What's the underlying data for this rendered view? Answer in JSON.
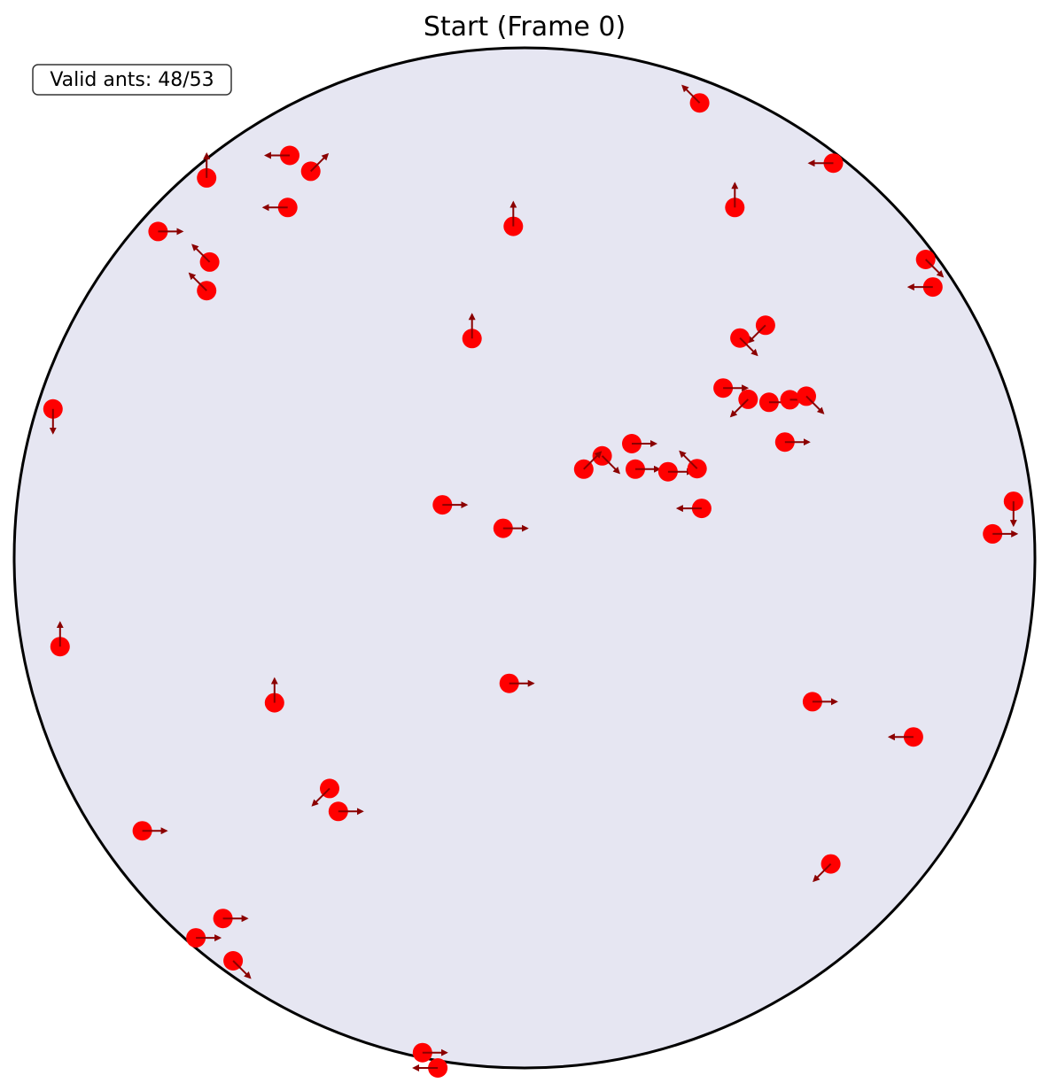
{
  "chart_data": {
    "type": "scatter",
    "title": "Start (Frame 0)",
    "annotation": "Valid ants: 48/53",
    "arena": {
      "shape": "circle",
      "fill": "#e6e6f2",
      "stroke": "#000000"
    },
    "colors": {
      "ant": "#ff0000",
      "arrow": "#8b0000",
      "arena": "#e6e6f2"
    },
    "axis_range": {
      "x": [
        -1,
        1
      ],
      "y": [
        -1,
        1
      ]
    },
    "grid": false,
    "legend": "none",
    "ants": [
      {
        "x": 0.343,
        "y": 0.892,
        "dir": "nw"
      },
      {
        "x": -0.46,
        "y": 0.789,
        "dir": "w"
      },
      {
        "x": -0.419,
        "y": 0.758,
        "dir": "ne"
      },
      {
        "x": 0.605,
        "y": 0.774,
        "dir": "w"
      },
      {
        "x": -0.623,
        "y": 0.745,
        "dir": "n"
      },
      {
        "x": -0.464,
        "y": 0.687,
        "dir": "w"
      },
      {
        "x": -0.022,
        "y": 0.65,
        "dir": "n"
      },
      {
        "x": 0.412,
        "y": 0.687,
        "dir": "n"
      },
      {
        "x": -0.718,
        "y": 0.64,
        "dir": "e"
      },
      {
        "x": -0.617,
        "y": 0.58,
        "dir": "nw"
      },
      {
        "x": -0.623,
        "y": 0.524,
        "dir": "nw"
      },
      {
        "x": 0.786,
        "y": 0.585,
        "dir": "se"
      },
      {
        "x": 0.8,
        "y": 0.531,
        "dir": "w"
      },
      {
        "x": 0.472,
        "y": 0.456,
        "dir": "sw"
      },
      {
        "x": 0.422,
        "y": 0.431,
        "dir": "se"
      },
      {
        "x": -0.103,
        "y": 0.43,
        "dir": "n"
      },
      {
        "x": 0.389,
        "y": 0.333,
        "dir": "e"
      },
      {
        "x": 0.438,
        "y": 0.311,
        "dir": "sw"
      },
      {
        "x": 0.479,
        "y": 0.305,
        "dir": "e"
      },
      {
        "x": 0.52,
        "y": 0.31,
        "dir": "e"
      },
      {
        "x": 0.552,
        "y": 0.317,
        "dir": "se"
      },
      {
        "x": -0.924,
        "y": 0.292,
        "dir": "s"
      },
      {
        "x": 0.21,
        "y": 0.224,
        "dir": "e"
      },
      {
        "x": 0.51,
        "y": 0.227,
        "dir": "e"
      },
      {
        "x": 0.152,
        "y": 0.2,
        "dir": "se"
      },
      {
        "x": 0.116,
        "y": 0.174,
        "dir": "ne"
      },
      {
        "x": 0.217,
        "y": 0.174,
        "dir": "e"
      },
      {
        "x": 0.281,
        "y": 0.169,
        "dir": "e"
      },
      {
        "x": 0.338,
        "y": 0.175,
        "dir": "nw"
      },
      {
        "x": 0.347,
        "y": 0.097,
        "dir": "w"
      },
      {
        "x": -0.161,
        "y": 0.104,
        "dir": "e"
      },
      {
        "x": -0.042,
        "y": 0.058,
        "dir": "e"
      },
      {
        "x": 0.958,
        "y": 0.111,
        "dir": "s"
      },
      {
        "x": 0.917,
        "y": 0.047,
        "dir": "e"
      },
      {
        "x": -0.91,
        "y": -0.174,
        "dir": "n"
      },
      {
        "x": -0.49,
        "y": -0.284,
        "dir": "n"
      },
      {
        "x": -0.03,
        "y": -0.246,
        "dir": "e"
      },
      {
        "x": 0.564,
        "y": -0.282,
        "dir": "e"
      },
      {
        "x": 0.762,
        "y": -0.351,
        "dir": "w"
      },
      {
        "x": -0.382,
        "y": -0.452,
        "dir": "sw"
      },
      {
        "x": -0.365,
        "y": -0.497,
        "dir": "e"
      },
      {
        "x": -0.749,
        "y": -0.535,
        "dir": "e"
      },
      {
        "x": 0.6,
        "y": -0.6,
        "dir": "sw"
      },
      {
        "x": -0.591,
        "y": -0.707,
        "dir": "e"
      },
      {
        "x": -0.644,
        "y": -0.745,
        "dir": "e"
      },
      {
        "x": -0.571,
        "y": -0.79,
        "dir": "se"
      },
      {
        "x": -0.2,
        "y": -0.97,
        "dir": "e"
      },
      {
        "x": -0.17,
        "y": -1.0,
        "dir": "w"
      }
    ]
  }
}
